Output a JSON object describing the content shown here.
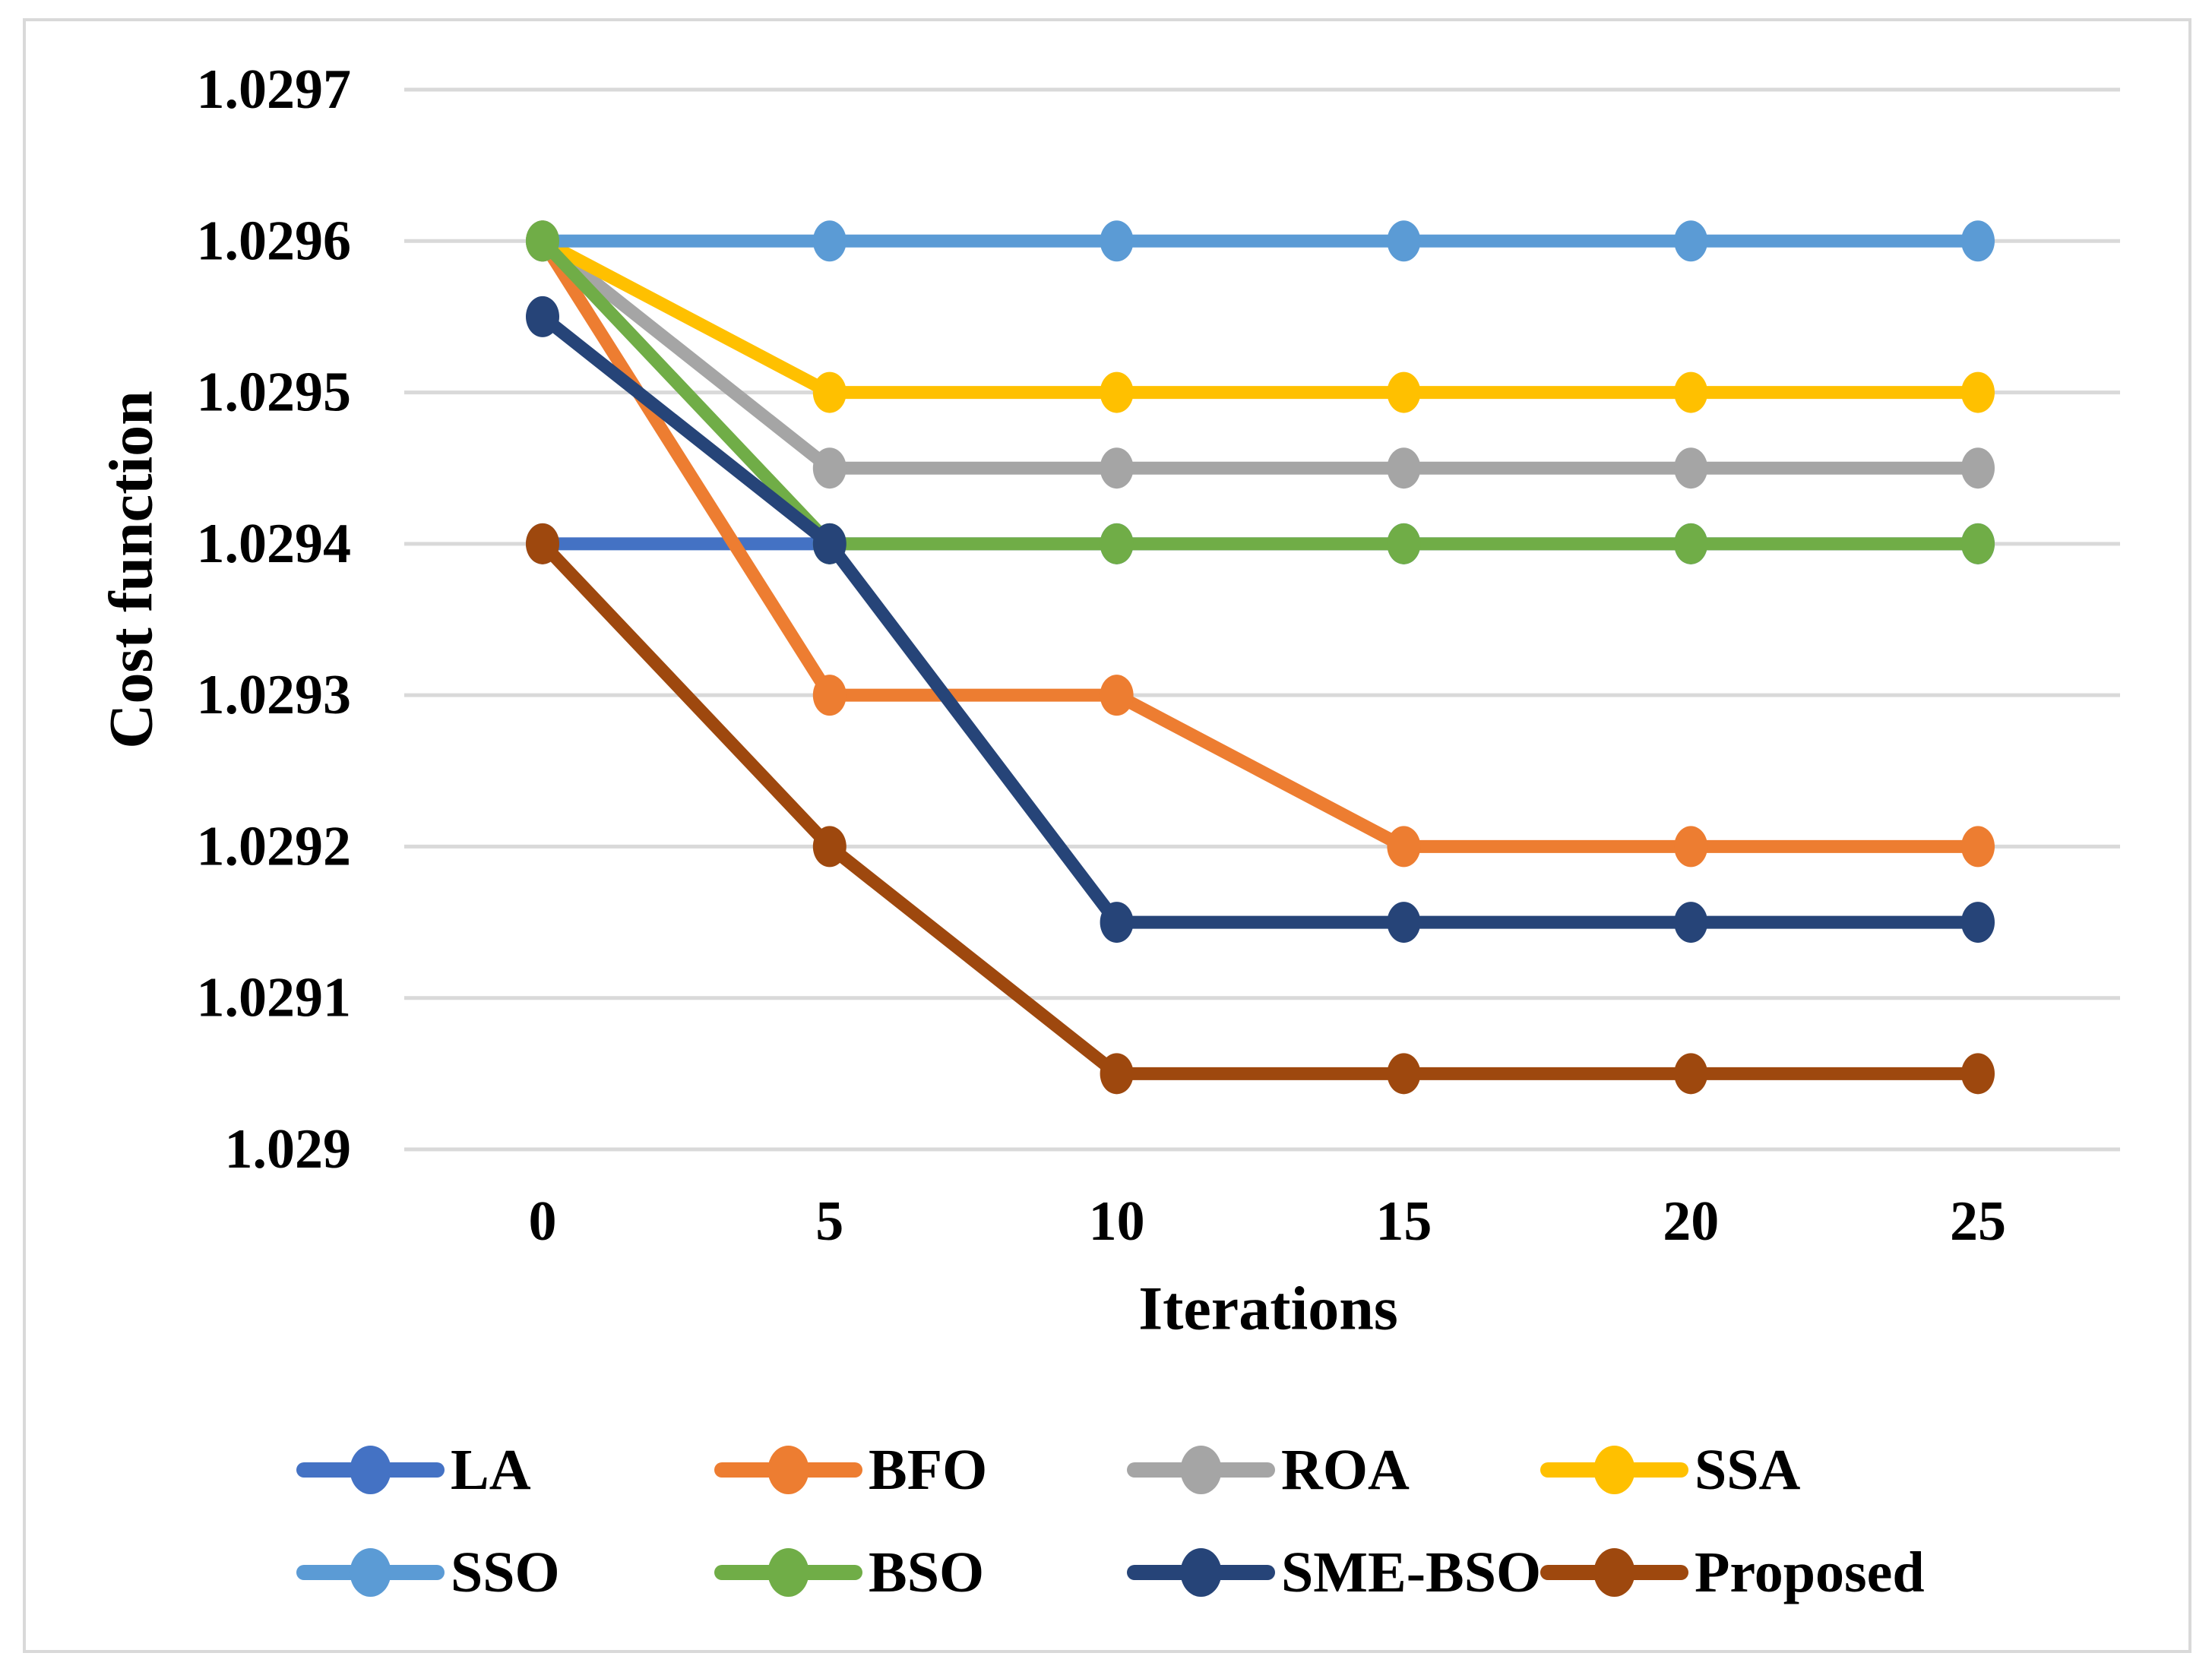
{
  "figure": {
    "background_color": "#FFFFFF",
    "border_color": "#D9D9D9",
    "gridline_color": "#D9D9D9"
  },
  "chart_data": {
    "type": "line",
    "title": "",
    "xlabel": "Iterations",
    "ylabel": "Cost function",
    "x": [
      0,
      5,
      10,
      15,
      20,
      25
    ],
    "x_tick_labels": [
      "0",
      "5",
      "10",
      "15",
      "20",
      "25"
    ],
    "ylim": [
      1.029,
      1.0297
    ],
    "y_tick_step": 0.0001,
    "y_ticks": [
      1.029,
      1.0291,
      1.0292,
      1.0293,
      1.0294,
      1.0295,
      1.0296,
      1.0297
    ],
    "y_tick_labels": [
      "1.029",
      "1.0291",
      "1.0292",
      "1.0293",
      "1.0294",
      "1.0295",
      "1.0296",
      "1.0297"
    ],
    "grid": "horizontal",
    "legend_position": "bottom",
    "marker": "circle",
    "series": [
      {
        "name": "LA",
        "color": "#4472C4",
        "values": [
          1.0294,
          1.0294,
          1.0294,
          1.0294,
          1.0294,
          1.0294
        ]
      },
      {
        "name": "BFO",
        "color": "#ED7D31",
        "values": [
          1.0296,
          1.0293,
          1.0293,
          1.0292,
          1.0292,
          1.0292
        ]
      },
      {
        "name": "ROA",
        "color": "#A5A5A5",
        "values": [
          1.0296,
          1.02945,
          1.02945,
          1.02945,
          1.02945,
          1.02945
        ]
      },
      {
        "name": "SSA",
        "color": "#FFC000",
        "values": [
          1.0296,
          1.0295,
          1.0295,
          1.0295,
          1.0295,
          1.0295
        ]
      },
      {
        "name": "SSO",
        "color": "#5B9BD5",
        "values": [
          1.0296,
          1.0296,
          1.0296,
          1.0296,
          1.0296,
          1.0296
        ]
      },
      {
        "name": "BSO",
        "color": "#70AD47",
        "values": [
          1.0296,
          1.0294,
          1.0294,
          1.0294,
          1.0294,
          1.0294
        ]
      },
      {
        "name": "SME-BSO",
        "color": "#264478",
        "values": [
          1.02955,
          1.0294,
          1.02915,
          1.02915,
          1.02915,
          1.02915
        ]
      },
      {
        "name": "Proposed",
        "color": "#9E480E",
        "values": [
          1.0294,
          1.0292,
          1.02905,
          1.02905,
          1.02905,
          1.02905
        ]
      }
    ],
    "legend_rows": [
      [
        "LA",
        "BFO",
        "ROA",
        "SSA"
      ],
      [
        "SSO",
        "BSO",
        "SME-BSO",
        "Proposed"
      ]
    ]
  }
}
